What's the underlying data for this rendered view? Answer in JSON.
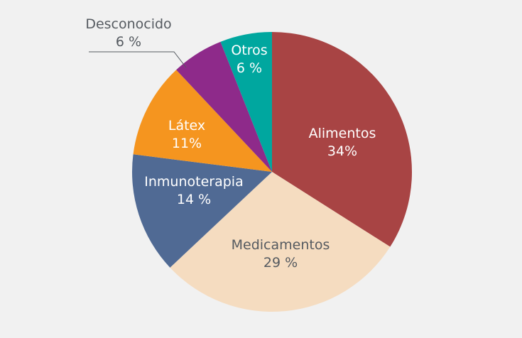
{
  "chart_data": {
    "type": "pie",
    "title": "",
    "start_angle_deg": 0,
    "direction": "clockwise",
    "slices": [
      {
        "label": "Alimentos",
        "value": 34,
        "display": "34%",
        "color": "#a84444"
      },
      {
        "label": "Medicamentos",
        "value": 29,
        "display": "29 %",
        "color": "#f5dcc0"
      },
      {
        "label": "Inmunoterapia",
        "value": 14,
        "display": "14 %",
        "color": "#506a94"
      },
      {
        "label": "Látex",
        "value": 11,
        "display": "11%",
        "color": "#f5951f"
      },
      {
        "label": "Desconocido",
        "value": 6,
        "display": "6 %",
        "color": "#8e2a8a"
      },
      {
        "label": "Otros",
        "value": 6,
        "display": "6 %",
        "color": "#00a79f"
      }
    ]
  },
  "labels": {
    "alimentos": {
      "name": "Alimentos",
      "pct": "34%"
    },
    "medicamentos": {
      "name": "Medicamentos",
      "pct": "29 %"
    },
    "inmunoterapia": {
      "name": "Inmunoterapia",
      "pct": "14 %"
    },
    "latex": {
      "name": "Látex",
      "pct": "11%"
    },
    "desconocido": {
      "name": "Desconocido",
      "pct": "6 %"
    },
    "otros": {
      "name": "Otros",
      "pct": "6 %"
    }
  }
}
